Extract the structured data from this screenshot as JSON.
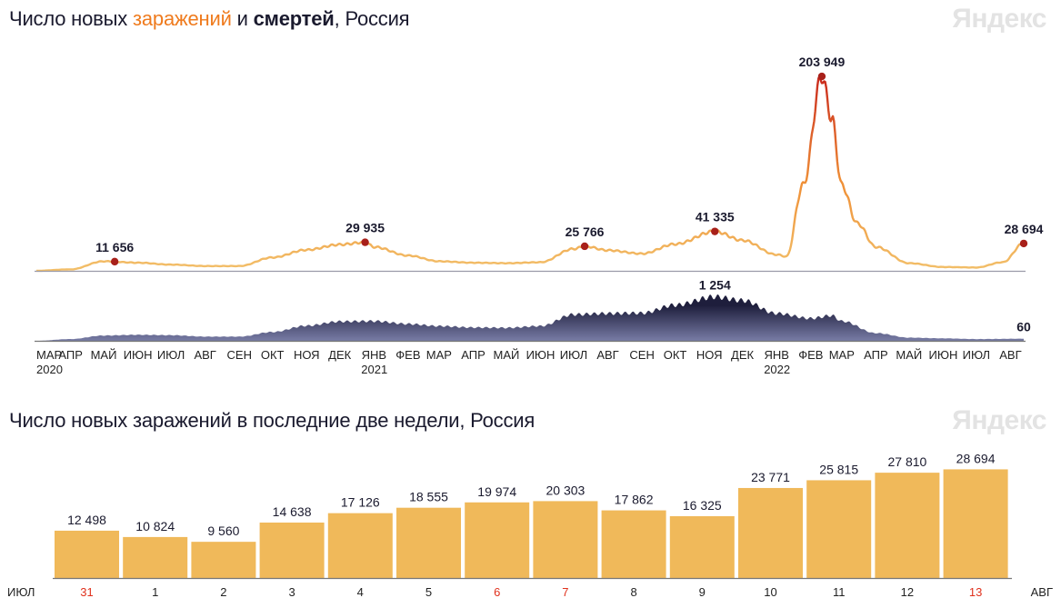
{
  "header": {
    "title_part1": "Число новых ",
    "title_cases": "заражений",
    "title_part2": " и ",
    "title_deaths": "смертей",
    "title_part3": ", Россия",
    "watermark": "Яндекс"
  },
  "colors": {
    "cases_low": "#f2c06a",
    "cases_mid": "#ef8f36",
    "cases_high": "#c8261c",
    "deaths_dark": "#1e1e3c",
    "deaths_light": "#7a7ea8",
    "marker": "#a8201a",
    "bar": "#f0b95a",
    "weekend": "#e0311d",
    "axis": "#555555"
  },
  "chart_data": [
    {
      "type": "line",
      "title": "Число новых заражений и смертей, Россия",
      "series": [
        {
          "name": "Новые заражения",
          "x": [
            "2020-03-01",
            "2020-04-01",
            "2020-05-01",
            "2020-06-01",
            "2020-07-01",
            "2020-08-01",
            "2020-09-01",
            "2020-10-01",
            "2020-11-01",
            "2020-12-01",
            "2020-12-24",
            "2021-01-01",
            "2021-02-01",
            "2021-03-01",
            "2021-04-01",
            "2021-05-01",
            "2021-06-01",
            "2021-07-01",
            "2021-07-11",
            "2021-08-01",
            "2021-09-01",
            "2021-10-01",
            "2021-11-06",
            "2021-12-01",
            "2022-01-01",
            "2022-01-10",
            "2022-01-25",
            "2022-02-11",
            "2022-02-20",
            "2022-03-01",
            "2022-03-15",
            "2022-04-01",
            "2022-05-01",
            "2022-06-01",
            "2022-07-01",
            "2022-07-25",
            "2022-08-13"
          ],
          "values": [
            50,
            1500,
            10000,
            8500,
            6500,
            5000,
            5000,
            14000,
            22000,
            27500,
            29935,
            25000,
            16000,
            10000,
            8500,
            8000,
            9000,
            23000,
            25766,
            21500,
            18000,
            28000,
            41335,
            32000,
            17000,
            15000,
            90000,
            203949,
            160000,
            90000,
            50000,
            25000,
            8000,
            4000,
            3500,
            9000,
            28694
          ],
          "labels": [
            {
              "x": "2020-05-11",
              "value": "11 656"
            },
            {
              "x": "2020-12-24",
              "value": "29 935"
            },
            {
              "x": "2021-07-11",
              "value": "25 766"
            },
            {
              "x": "2021-11-06",
              "value": "41 335"
            },
            {
              "x": "2022-02-11",
              "value": "203 949"
            },
            {
              "x": "2022-08-13",
              "value": "28 694"
            }
          ]
        },
        {
          "name": "Смерти",
          "x": [
            "2020-03-01",
            "2020-04-01",
            "2020-05-01",
            "2020-06-01",
            "2020-07-01",
            "2020-08-01",
            "2020-09-01",
            "2020-10-01",
            "2020-11-01",
            "2020-12-01",
            "2021-01-01",
            "2021-02-01",
            "2021-03-01",
            "2021-04-01",
            "2021-05-01",
            "2021-06-01",
            "2021-07-01",
            "2021-08-01",
            "2021-09-01",
            "2021-10-01",
            "2021-11-06",
            "2021-12-01",
            "2022-01-01",
            "2022-02-01",
            "2022-02-20",
            "2022-03-01",
            "2022-04-01",
            "2022-05-01",
            "2022-06-01",
            "2022-07-01",
            "2022-08-13"
          ],
          "values": [
            0,
            50,
            150,
            170,
            160,
            120,
            120,
            250,
            430,
            550,
            560,
            480,
            420,
            380,
            370,
            420,
            750,
            780,
            790,
            1020,
            1254,
            1150,
            780,
            640,
            720,
            560,
            220,
            90,
            70,
            50,
            60
          ],
          "labels": [
            {
              "x": "2021-11-06",
              "value": "1 254"
            },
            {
              "x": "2022-08-13",
              "value": "60"
            }
          ]
        }
      ],
      "x_ticks": [
        {
          "date": "2020-03-01",
          "label": "МАР",
          "year": "2020"
        },
        {
          "date": "2020-04-01",
          "label": "АПР"
        },
        {
          "date": "2020-05-01",
          "label": "МАЙ"
        },
        {
          "date": "2020-06-01",
          "label": "ИЮН"
        },
        {
          "date": "2020-07-01",
          "label": "ИЮЛ"
        },
        {
          "date": "2020-08-01",
          "label": "АВГ"
        },
        {
          "date": "2020-09-01",
          "label": "СЕН"
        },
        {
          "date": "2020-10-01",
          "label": "ОКТ"
        },
        {
          "date": "2020-11-01",
          "label": "НОЯ"
        },
        {
          "date": "2020-12-01",
          "label": "ДЕК"
        },
        {
          "date": "2021-01-01",
          "label": "ЯНВ",
          "year": "2021"
        },
        {
          "date": "2021-02-01",
          "label": "ФЕВ"
        },
        {
          "date": "2021-03-01",
          "label": "МАР"
        },
        {
          "date": "2021-04-01",
          "label": "АПР"
        },
        {
          "date": "2021-05-01",
          "label": "МАЙ"
        },
        {
          "date": "2021-06-01",
          "label": "ИЮН"
        },
        {
          "date": "2021-07-01",
          "label": "ИЮЛ"
        },
        {
          "date": "2021-08-01",
          "label": "АВГ"
        },
        {
          "date": "2021-09-01",
          "label": "СЕН"
        },
        {
          "date": "2021-10-01",
          "label": "ОКТ"
        },
        {
          "date": "2021-11-01",
          "label": "НОЯ"
        },
        {
          "date": "2021-12-01",
          "label": "ДЕК"
        },
        {
          "date": "2022-01-01",
          "label": "ЯНВ",
          "year": "2022"
        },
        {
          "date": "2022-02-01",
          "label": "ФЕВ"
        },
        {
          "date": "2022-03-01",
          "label": "МАР"
        },
        {
          "date": "2022-04-01",
          "label": "АПР"
        },
        {
          "date": "2022-05-01",
          "label": "МАЙ"
        },
        {
          "date": "2022-06-01",
          "label": "ИЮН"
        },
        {
          "date": "2022-07-01",
          "label": "ИЮЛ"
        },
        {
          "date": "2022-08-01",
          "label": "АВГ"
        }
      ],
      "x_range": [
        "2020-03-01",
        "2022-08-13"
      ],
      "cases_ylim": [
        0,
        225000
      ],
      "deaths_ylim": [
        0,
        1400
      ]
    },
    {
      "type": "bar",
      "title": "Число новых заражений в последние две недели, Россия",
      "categories": [
        "31",
        "1",
        "2",
        "3",
        "4",
        "5",
        "6",
        "7",
        "8",
        "9",
        "10",
        "11",
        "12",
        "13"
      ],
      "weekend": [
        true,
        false,
        false,
        false,
        false,
        false,
        true,
        true,
        false,
        false,
        false,
        false,
        false,
        true
      ],
      "values": [
        12498,
        10824,
        9560,
        14638,
        17126,
        18555,
        19974,
        20303,
        17862,
        16325,
        23771,
        25815,
        27810,
        28694
      ],
      "value_labels": [
        "12 498",
        "10 824",
        "9 560",
        "14 638",
        "17 126",
        "18 555",
        "19 974",
        "20 303",
        "17 862",
        "16 325",
        "23 771",
        "25 815",
        "27 810",
        "28 694"
      ],
      "month_start": "ИЮЛ",
      "month_end": "АВГ",
      "ylim": [
        0,
        30000
      ]
    }
  ],
  "bottom_section": {
    "title": "Число новых заражений в последние две недели, Россия",
    "watermark": "Яндекс"
  }
}
